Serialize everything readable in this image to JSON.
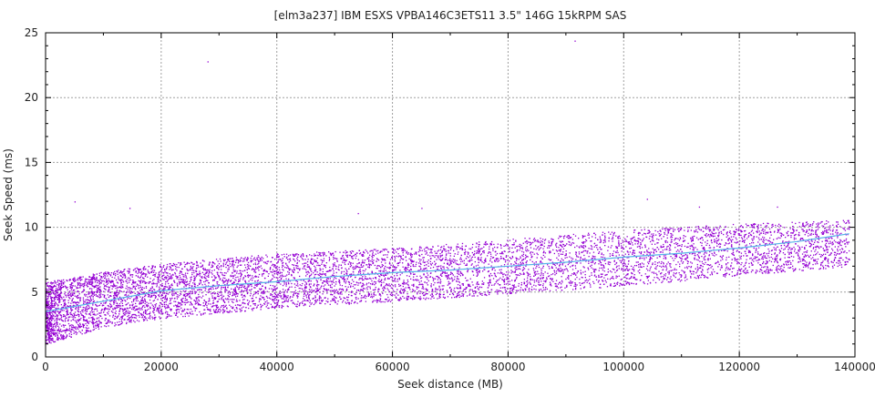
{
  "chart_data": {
    "type": "scatter",
    "title": "[elm3a237] IBM ESXS VPBA146C3ETS11 3.5\" 146G 15kRPM SAS",
    "xlabel": "Seek distance (MB)",
    "ylabel": "Seek Speed (ms)",
    "xlim": [
      0,
      140000
    ],
    "ylim": [
      0,
      25
    ],
    "xticks": [
      "0",
      "20000",
      "40000",
      "60000",
      "80000",
      "100000",
      "120000",
      "140000"
    ],
    "yticks": [
      "0",
      "5",
      "10",
      "15",
      "20",
      "25"
    ],
    "grid": true,
    "colors": {
      "points": "#9400d3",
      "trend": "#56b4e9",
      "grid": "#a0a0a0"
    },
    "point_band": {
      "x": [
        0,
        10000,
        20000,
        40000,
        60000,
        80000,
        100000,
        120000,
        139000
      ],
      "lower": [
        1.0,
        2.3,
        3.0,
        3.8,
        4.3,
        4.9,
        5.5,
        6.3,
        7.0
      ],
      "upper": [
        5.8,
        6.6,
        7.2,
        8.0,
        8.4,
        9.1,
        9.8,
        10.3,
        10.6
      ]
    },
    "outliers": [
      {
        "x": 28000,
        "y": 22.8
      },
      {
        "x": 91500,
        "y": 24.4
      },
      {
        "x": 5000,
        "y": 12.0
      },
      {
        "x": 14500,
        "y": 11.5
      },
      {
        "x": 54000,
        "y": 11.1
      },
      {
        "x": 65000,
        "y": 11.5
      },
      {
        "x": 104000,
        "y": 12.2
      },
      {
        "x": 113000,
        "y": 11.6
      },
      {
        "x": 126500,
        "y": 11.6
      }
    ],
    "trend": {
      "x": [
        0,
        5000,
        10000,
        20000,
        30000,
        40000,
        50000,
        60000,
        70000,
        80000,
        90000,
        100000,
        110000,
        120000,
        130000,
        139000
      ],
      "y": [
        3.5,
        3.9,
        4.3,
        5.1,
        5.5,
        5.8,
        6.2,
        6.5,
        6.7,
        7.0,
        7.3,
        7.7,
        8.0,
        8.4,
        8.9,
        9.5
      ]
    }
  }
}
